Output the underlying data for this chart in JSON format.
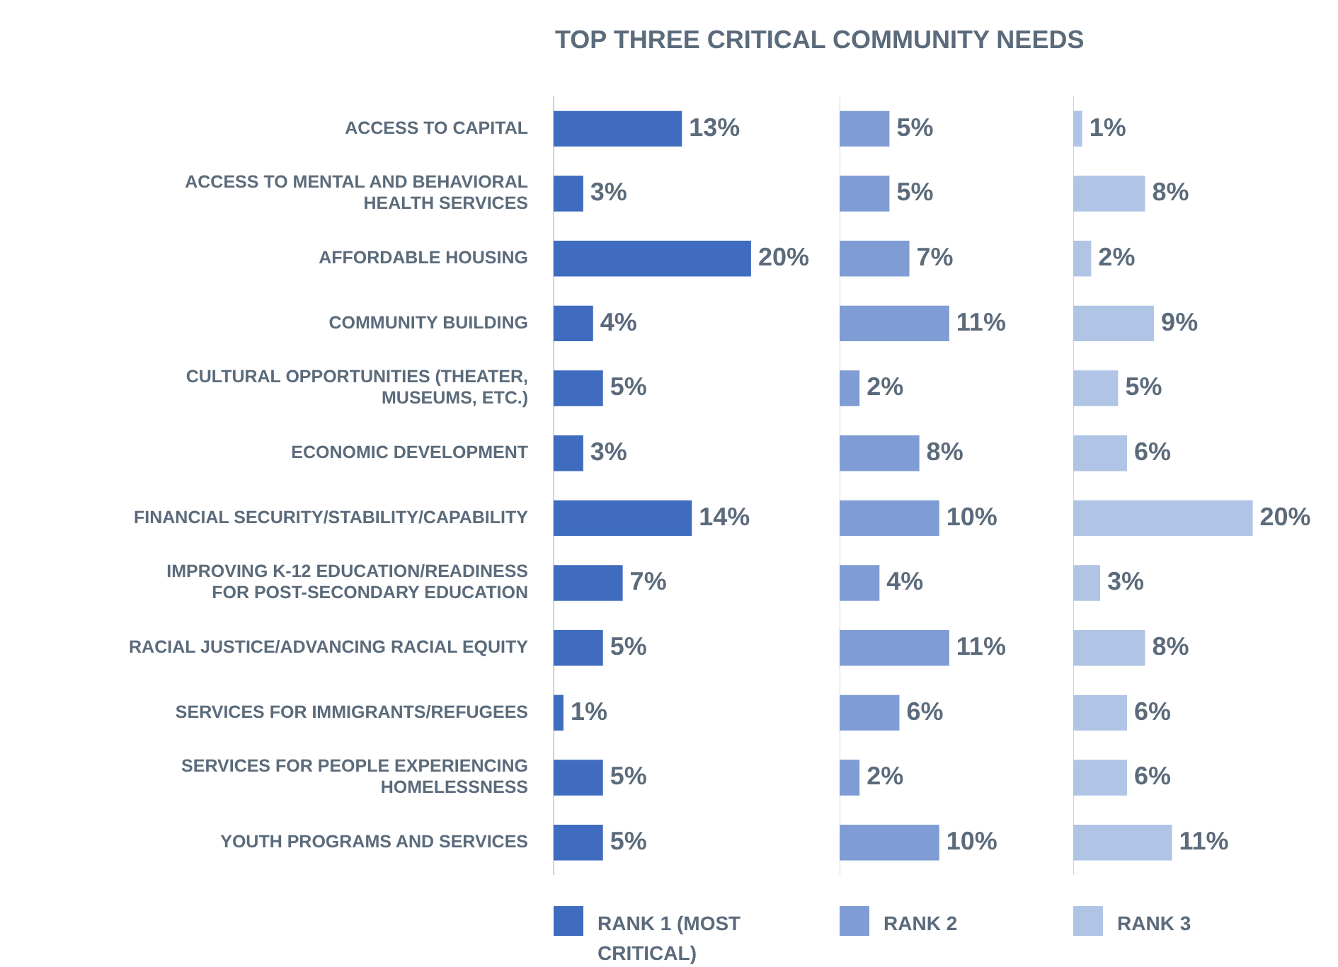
{
  "chart_data": [
    {
      "type": "bar",
      "orientation": "horizontal",
      "title": "TOP THREE CRITICAL COMMUNITY NEEDS",
      "categories": [
        "ACCESS TO CAPITAL",
        "ACCESS TO MENTAL AND BEHAVIORAL HEALTH SERVICES",
        "AFFORDABLE HOUSING",
        "COMMUNITY BUILDING",
        "CULTURAL OPPORTUNITIES (THEATER, MUSEUMS, ETC.)",
        "ECONOMIC DEVELOPMENT",
        "FINANCIAL SECURITY/STABILITY/CAPABILITY",
        "IMPROVING K-12 EDUCATION/READINESS FOR POST-SECONDARY EDUCATION",
        "RACIAL JUSTICE/ADVANCING RACIAL EQUITY",
        "SERVICES FOR IMMIGRANTS/REFUGEES",
        "SERVICES FOR PEOPLE EXPERIENCING HOMELESSNESS",
        "YOUTH PROGRAMS AND SERVICES"
      ],
      "tick_labels": "y",
      "legend": "bottom",
      "grid": false,
      "series": [
        {
          "name": "RANK 1 (MOST CRITICAL)",
          "color": "#3f6cbf",
          "values": [
            13,
            3,
            20,
            4,
            5,
            3,
            14,
            7,
            5,
            1,
            5,
            5
          ],
          "value_labels": [
            "13%",
            "3%",
            "20%",
            "4%",
            "5%",
            "3%",
            "14%",
            "7%",
            "5%",
            "1%",
            "5%",
            "5%"
          ]
        }
      ]
    },
    {
      "type": "bar",
      "orientation": "horizontal",
      "categories": [
        null,
        null,
        null,
        null,
        null,
        null,
        null,
        null,
        null,
        null,
        null,
        null
      ],
      "tick_labels": false,
      "legend": "bottom",
      "grid": false,
      "series": [
        {
          "name": "RANK 2",
          "color": "#7f9dd4",
          "values": [
            5,
            5,
            7,
            11,
            2,
            8,
            10,
            4,
            11,
            6,
            2,
            10
          ],
          "value_labels": [
            "5%",
            "5%",
            "7%",
            "11%",
            "2%",
            "8%",
            "10%",
            "4%",
            "11%",
            "6%",
            "2%",
            "10%"
          ]
        }
      ]
    },
    {
      "type": "bar",
      "orientation": "horizontal",
      "categories": [
        null,
        null,
        null,
        null,
        null,
        null,
        null,
        null,
        null,
        null,
        null,
        null
      ],
      "tick_labels": false,
      "legend": "bottom",
      "grid": false,
      "series": [
        {
          "name": "RANK 3",
          "color": "#b0c5e6",
          "values": [
            1,
            8,
            2,
            9,
            5,
            6,
            20,
            3,
            8,
            6,
            6,
            11
          ],
          "value_labels": [
            "1%",
            "8%",
            "2%",
            "9%",
            "5%",
            "6%",
            "20%",
            "3%",
            "8%",
            "6%",
            "6%",
            "11%"
          ]
        }
      ]
    }
  ]
}
